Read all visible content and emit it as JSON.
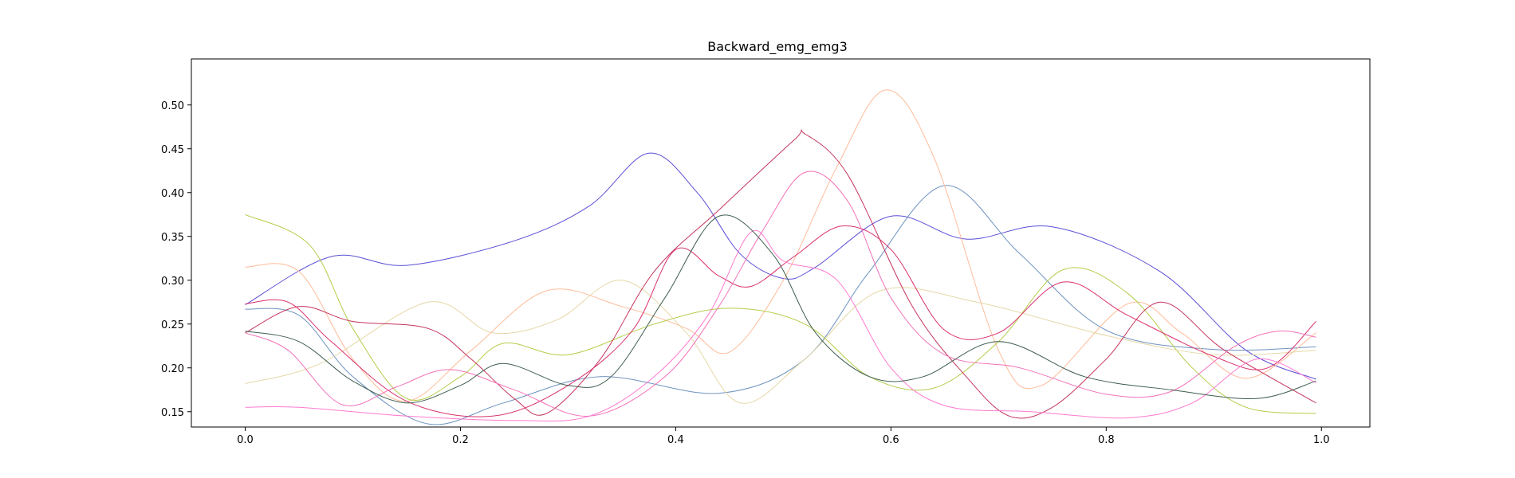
{
  "chart_data": {
    "type": "line",
    "title": "Backward_emg_emg3",
    "xlabel": "",
    "ylabel": "",
    "xlim": [
      -0.05,
      1.045
    ],
    "ylim": [
      0.1325,
      0.5525
    ],
    "xticks": [
      0.0,
      0.2,
      0.4,
      0.6,
      0.8,
      1.0
    ],
    "xtick_labels": [
      "0.0",
      "0.2",
      "0.4",
      "0.6",
      "0.8",
      "1.0"
    ],
    "yticks": [
      0.15,
      0.2,
      0.25,
      0.3,
      0.35,
      0.4,
      0.45,
      0.5
    ],
    "ytick_labels": [
      "0.15",
      "0.20",
      "0.25",
      "0.30",
      "0.35",
      "0.40",
      "0.45",
      "0.50"
    ],
    "grid": false,
    "legend": "none",
    "series": [
      {
        "color": "#5a4fd6",
        "points": [
          [
            0.0,
            0.272
          ],
          [
            0.08,
            0.327
          ],
          [
            0.15,
            0.317
          ],
          [
            0.25,
            0.345
          ],
          [
            0.32,
            0.385
          ],
          [
            0.375,
            0.445
          ],
          [
            0.42,
            0.4
          ],
          [
            0.46,
            0.33
          ],
          [
            0.5,
            0.302
          ],
          [
            0.53,
            0.315
          ],
          [
            0.6,
            0.373
          ],
          [
            0.67,
            0.347
          ],
          [
            0.75,
            0.361
          ],
          [
            0.85,
            0.31
          ],
          [
            0.93,
            0.22
          ],
          [
            0.995,
            0.187
          ]
        ]
      },
      {
        "color": "#6f93c0",
        "points": [
          [
            0.0,
            0.267
          ],
          [
            0.05,
            0.26
          ],
          [
            0.1,
            0.19
          ],
          [
            0.17,
            0.136
          ],
          [
            0.24,
            0.16
          ],
          [
            0.33,
            0.19
          ],
          [
            0.44,
            0.171
          ],
          [
            0.52,
            0.21
          ],
          [
            0.58,
            0.31
          ],
          [
            0.65,
            0.408
          ],
          [
            0.72,
            0.33
          ],
          [
            0.8,
            0.243
          ],
          [
            0.9,
            0.221
          ],
          [
            0.995,
            0.224
          ]
        ]
      },
      {
        "color": "#ffbb99",
        "points": [
          [
            0.0,
            0.315
          ],
          [
            0.05,
            0.31
          ],
          [
            0.1,
            0.21
          ],
          [
            0.15,
            0.162
          ],
          [
            0.21,
            0.22
          ],
          [
            0.28,
            0.288
          ],
          [
            0.35,
            0.27
          ],
          [
            0.41,
            0.245
          ],
          [
            0.45,
            0.218
          ],
          [
            0.5,
            0.3
          ],
          [
            0.55,
            0.43
          ],
          [
            0.595,
            0.517
          ],
          [
            0.64,
            0.44
          ],
          [
            0.7,
            0.22
          ],
          [
            0.74,
            0.18
          ],
          [
            0.82,
            0.273
          ],
          [
            0.87,
            0.24
          ],
          [
            0.93,
            0.188
          ],
          [
            0.995,
            0.24
          ]
        ]
      },
      {
        "color": "#b5cc4a",
        "points": [
          [
            0.0,
            0.375
          ],
          [
            0.06,
            0.34
          ],
          [
            0.1,
            0.245
          ],
          [
            0.15,
            0.165
          ],
          [
            0.2,
            0.19
          ],
          [
            0.24,
            0.228
          ],
          [
            0.3,
            0.215
          ],
          [
            0.38,
            0.25
          ],
          [
            0.45,
            0.268
          ],
          [
            0.52,
            0.25
          ],
          [
            0.58,
            0.19
          ],
          [
            0.64,
            0.177
          ],
          [
            0.7,
            0.23
          ],
          [
            0.76,
            0.312
          ],
          [
            0.82,
            0.285
          ],
          [
            0.88,
            0.2
          ],
          [
            0.93,
            0.155
          ],
          [
            0.995,
            0.148
          ]
        ]
      },
      {
        "color": "#e6d8a8",
        "points": [
          [
            0.0,
            0.182
          ],
          [
            0.07,
            0.205
          ],
          [
            0.17,
            0.275
          ],
          [
            0.23,
            0.24
          ],
          [
            0.29,
            0.255
          ],
          [
            0.35,
            0.3
          ],
          [
            0.41,
            0.24
          ],
          [
            0.46,
            0.16
          ],
          [
            0.52,
            0.21
          ],
          [
            0.59,
            0.288
          ],
          [
            0.68,
            0.275
          ],
          [
            0.8,
            0.237
          ],
          [
            0.9,
            0.215
          ],
          [
            0.995,
            0.22
          ]
        ]
      },
      {
        "color": "#c4365e",
        "points": [
          [
            0.0,
            0.24
          ],
          [
            0.05,
            0.27
          ],
          [
            0.1,
            0.253
          ],
          [
            0.17,
            0.245
          ],
          [
            0.21,
            0.21
          ],
          [
            0.25,
            0.165
          ],
          [
            0.28,
            0.148
          ],
          [
            0.33,
            0.21
          ],
          [
            0.38,
            0.31
          ],
          [
            0.44,
            0.38
          ],
          [
            0.51,
            0.46
          ],
          [
            0.52,
            0.467
          ],
          [
            0.56,
            0.42
          ],
          [
            0.62,
            0.27
          ],
          [
            0.67,
            0.19
          ],
          [
            0.71,
            0.145
          ],
          [
            0.75,
            0.155
          ],
          [
            0.8,
            0.21
          ],
          [
            0.85,
            0.275
          ],
          [
            0.91,
            0.22
          ],
          [
            0.995,
            0.16
          ]
        ]
      },
      {
        "color": "#d9306e",
        "points": [
          [
            0.0,
            0.273
          ],
          [
            0.04,
            0.275
          ],
          [
            0.08,
            0.23
          ],
          [
            0.15,
            0.162
          ],
          [
            0.23,
            0.145
          ],
          [
            0.3,
            0.18
          ],
          [
            0.36,
            0.243
          ],
          [
            0.4,
            0.335
          ],
          [
            0.44,
            0.305
          ],
          [
            0.47,
            0.293
          ],
          [
            0.51,
            0.327
          ],
          [
            0.555,
            0.362
          ],
          [
            0.6,
            0.335
          ],
          [
            0.65,
            0.243
          ],
          [
            0.7,
            0.24
          ],
          [
            0.76,
            0.298
          ],
          [
            0.82,
            0.26
          ],
          [
            0.9,
            0.213
          ],
          [
            0.95,
            0.2
          ],
          [
            0.995,
            0.253
          ]
        ]
      },
      {
        "color": "#f272b8",
        "points": [
          [
            0.0,
            0.24
          ],
          [
            0.04,
            0.22
          ],
          [
            0.09,
            0.158
          ],
          [
            0.14,
            0.178
          ],
          [
            0.19,
            0.198
          ],
          [
            0.25,
            0.175
          ],
          [
            0.32,
            0.145
          ],
          [
            0.39,
            0.19
          ],
          [
            0.44,
            0.27
          ],
          [
            0.48,
            0.355
          ],
          [
            0.52,
            0.423
          ],
          [
            0.56,
            0.39
          ],
          [
            0.6,
            0.28
          ],
          [
            0.65,
            0.215
          ],
          [
            0.72,
            0.2
          ],
          [
            0.8,
            0.17
          ],
          [
            0.86,
            0.173
          ],
          [
            0.92,
            0.225
          ],
          [
            0.96,
            0.242
          ],
          [
            0.995,
            0.235
          ]
        ]
      },
      {
        "color": "#ff7ad0",
        "points": [
          [
            0.0,
            0.155
          ],
          [
            0.05,
            0.155
          ],
          [
            0.15,
            0.145
          ],
          [
            0.25,
            0.14
          ],
          [
            0.32,
            0.145
          ],
          [
            0.38,
            0.19
          ],
          [
            0.43,
            0.26
          ],
          [
            0.47,
            0.355
          ],
          [
            0.5,
            0.322
          ],
          [
            0.55,
            0.3
          ],
          [
            0.6,
            0.2
          ],
          [
            0.65,
            0.157
          ],
          [
            0.73,
            0.15
          ],
          [
            0.82,
            0.143
          ],
          [
            0.88,
            0.16
          ],
          [
            0.94,
            0.21
          ],
          [
            0.995,
            0.183
          ]
        ]
      },
      {
        "color": "#3f5e4e",
        "points": [
          [
            0.0,
            0.242
          ],
          [
            0.05,
            0.23
          ],
          [
            0.1,
            0.185
          ],
          [
            0.15,
            0.16
          ],
          [
            0.2,
            0.18
          ],
          [
            0.24,
            0.205
          ],
          [
            0.3,
            0.18
          ],
          [
            0.34,
            0.19
          ],
          [
            0.39,
            0.28
          ],
          [
            0.44,
            0.373
          ],
          [
            0.49,
            0.33
          ],
          [
            0.53,
            0.24
          ],
          [
            0.58,
            0.19
          ],
          [
            0.63,
            0.19
          ],
          [
            0.7,
            0.23
          ],
          [
            0.78,
            0.19
          ],
          [
            0.86,
            0.175
          ],
          [
            0.94,
            0.165
          ],
          [
            0.995,
            0.185
          ]
        ]
      }
    ]
  }
}
